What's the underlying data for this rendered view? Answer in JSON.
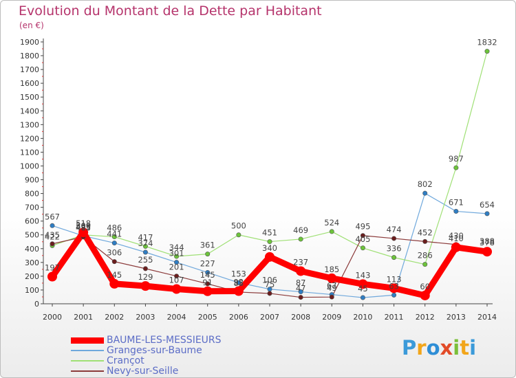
{
  "title": "Evolution du Montant de la Dette par Habitant",
  "unit": "(en €)",
  "logo": {
    "text": "Proxiti",
    "letters": [
      "P",
      "r",
      "o",
      "x",
      "i",
      "t",
      "i"
    ],
    "colors": [
      "#3b9ad9",
      "#f2a51a",
      "#2e8ed6",
      "#e24b28",
      "#7bbf3a",
      "#f2a51a",
      "#3b9ad9"
    ]
  },
  "chart_data": {
    "type": "line",
    "title": "Evolution du Montant de la Dette par Habitant",
    "ylabel": "(en €)",
    "xlabel": "",
    "ylim": [
      0,
      1900
    ],
    "yticks": [
      0,
      100,
      200,
      300,
      400,
      500,
      600,
      700,
      800,
      900,
      1000,
      1100,
      1200,
      1300,
      1400,
      1500,
      1600,
      1700,
      1800,
      1900
    ],
    "grid": false,
    "legend": "bottom-left",
    "x": [
      "2000",
      "2001",
      "2002",
      "2003",
      "2004",
      "2005",
      "2006",
      "2007",
      "2008",
      "2009",
      "2010",
      "2011",
      "2012",
      "2013",
      "2014"
    ],
    "series": [
      {
        "name": "BAUME-LES-MESSIEURS",
        "color": "#ff0000",
        "dot": "#e31a1a",
        "values": [
          197,
          518,
          145,
          129,
          107,
          91,
          92,
          340,
          237,
          185,
          143,
          113,
          60,
          410,
          378
        ]
      },
      {
        "name": "Granges-sur-Baume",
        "color": "#6fa8dc",
        "dot": "#2f7ec4",
        "values": [
          567,
          493,
          441,
          374,
          301,
          227,
          153,
          106,
          87,
          67,
          45,
          63,
          802,
          671,
          654
        ]
      },
      {
        "name": "Crançot",
        "color": "#9fe075",
        "dot": "#6cc43a",
        "values": [
          422,
          500,
          486,
          417,
          344,
          361,
          500,
          451,
          469,
          524,
          405,
          336,
          286,
          987,
          1832
        ]
      },
      {
        "name": "Nevy-sur-Seille",
        "color": "#8b3a3a",
        "dot": "#6b1d1d",
        "values": [
          435,
          485,
          306,
          255,
          201,
          145,
          85,
          75,
          47,
          49,
          495,
          474,
          452,
          430,
          388
        ]
      }
    ]
  }
}
